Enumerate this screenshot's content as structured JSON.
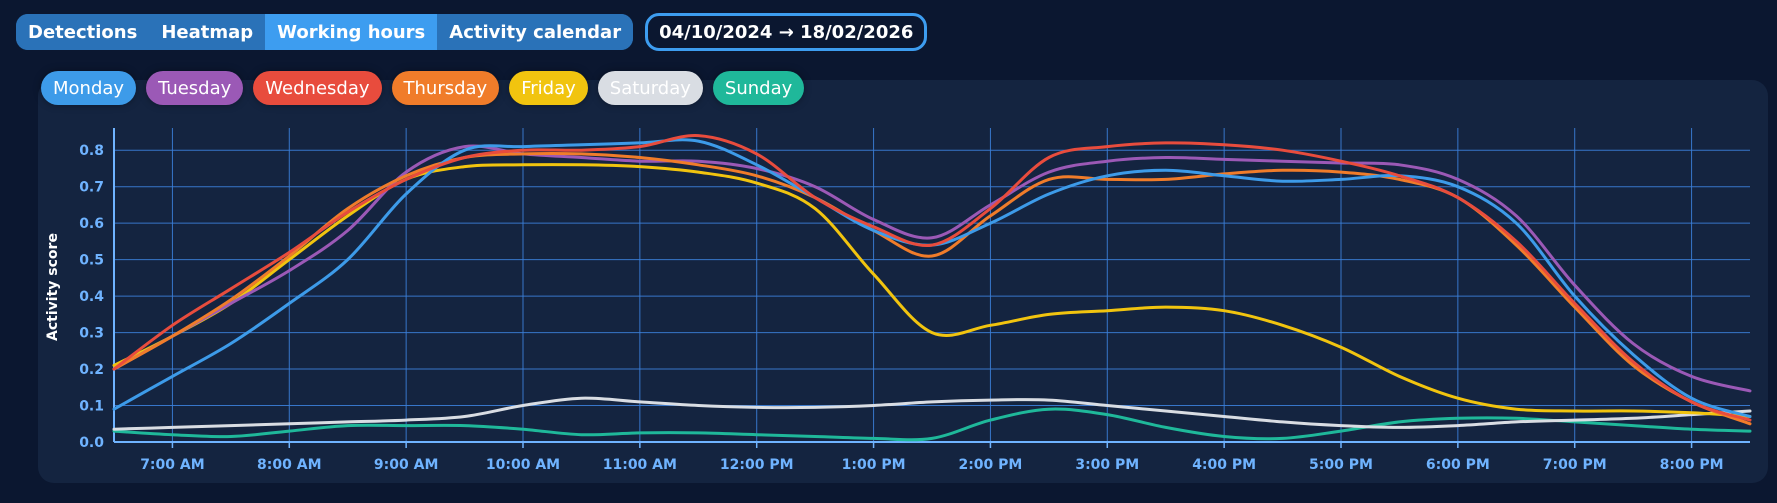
{
  "tabs": [
    {
      "label": "Detections",
      "active": false
    },
    {
      "label": "Heatmap",
      "active": false
    },
    {
      "label": "Working hours",
      "active": true
    },
    {
      "label": "Activity calendar",
      "active": false
    }
  ],
  "date_range": "04/10/2024 → 18/02/2026",
  "chart_data": {
    "type": "line",
    "ylabel": "Activity score",
    "xlabel": "",
    "ylim": [
      0,
      0.85
    ],
    "xlim": [
      6.5,
      20.5
    ],
    "yticks": [
      0.0,
      0.1,
      0.2,
      0.3,
      0.4,
      0.5,
      0.6,
      0.7,
      0.8
    ],
    "yticklabels": [
      "0.0",
      "0.1",
      "0.2",
      "0.3",
      "0.4",
      "0.5",
      "0.6",
      "0.7",
      "0.8"
    ],
    "xticks": [
      7,
      8,
      9,
      10,
      11,
      12,
      13,
      14,
      15,
      16,
      17,
      18,
      19,
      20
    ],
    "xticklabels": [
      "7:00 AM",
      "8:00 AM",
      "9:00 AM",
      "10:00 AM",
      "11:00 AM",
      "12:00 PM",
      "1:00 PM",
      "2:00 PM",
      "3:00 PM",
      "4:00 PM",
      "5:00 PM",
      "6:00 PM",
      "7:00 PM",
      "8:00 PM"
    ],
    "grid": true,
    "legend_position": "top-left",
    "x": [
      6.5,
      7,
      7.5,
      8,
      8.5,
      9,
      9.5,
      10,
      10.5,
      11,
      11.5,
      12,
      12.5,
      13,
      13.5,
      14,
      14.5,
      15,
      15.5,
      16,
      16.5,
      17,
      17.5,
      18,
      18.5,
      19,
      19.5,
      20,
      20.5
    ],
    "series": [
      {
        "name": "Monday",
        "color": "#3d9be9",
        "values": [
          0.09,
          0.18,
          0.27,
          0.38,
          0.5,
          0.68,
          0.8,
          0.81,
          0.815,
          0.82,
          0.825,
          0.76,
          0.67,
          0.58,
          0.54,
          0.6,
          0.68,
          0.73,
          0.745,
          0.73,
          0.715,
          0.72,
          0.73,
          0.7,
          0.6,
          0.4,
          0.24,
          0.12,
          0.07
        ]
      },
      {
        "name": "Tuesday",
        "color": "#9b59b6",
        "values": [
          0.2,
          0.29,
          0.38,
          0.47,
          0.58,
          0.74,
          0.81,
          0.79,
          0.78,
          0.77,
          0.77,
          0.75,
          0.7,
          0.61,
          0.56,
          0.65,
          0.74,
          0.77,
          0.78,
          0.775,
          0.77,
          0.765,
          0.76,
          0.72,
          0.62,
          0.43,
          0.27,
          0.18,
          0.14
        ]
      },
      {
        "name": "Wednesday",
        "color": "#e84c3d",
        "values": [
          0.2,
          0.32,
          0.42,
          0.52,
          0.63,
          0.72,
          0.78,
          0.8,
          0.8,
          0.81,
          0.84,
          0.79,
          0.67,
          0.59,
          0.54,
          0.64,
          0.78,
          0.81,
          0.82,
          0.815,
          0.8,
          0.77,
          0.73,
          0.67,
          0.55,
          0.38,
          0.22,
          0.11,
          0.06
        ]
      },
      {
        "name": "Thursday",
        "color": "#f07c2a",
        "values": [
          0.2,
          0.29,
          0.39,
          0.51,
          0.64,
          0.73,
          0.78,
          0.79,
          0.79,
          0.78,
          0.76,
          0.73,
          0.67,
          0.58,
          0.51,
          0.62,
          0.72,
          0.72,
          0.72,
          0.735,
          0.745,
          0.74,
          0.72,
          0.67,
          0.54,
          0.37,
          0.21,
          0.11,
          0.05
        ]
      },
      {
        "name": "Friday",
        "color": "#f1c40f",
        "values": [
          0.21,
          0.29,
          0.38,
          0.5,
          0.62,
          0.72,
          0.755,
          0.76,
          0.76,
          0.755,
          0.74,
          0.71,
          0.64,
          0.46,
          0.3,
          0.32,
          0.35,
          0.36,
          0.37,
          0.36,
          0.32,
          0.26,
          0.18,
          0.12,
          0.09,
          0.085,
          0.085,
          0.08,
          0.07
        ]
      },
      {
        "name": "Saturday",
        "color": "#d9dde3",
        "values": [
          0.035,
          0.04,
          0.045,
          0.05,
          0.055,
          0.06,
          0.07,
          0.1,
          0.12,
          0.11,
          0.1,
          0.095,
          0.095,
          0.1,
          0.11,
          0.115,
          0.115,
          0.1,
          0.085,
          0.07,
          0.055,
          0.045,
          0.04,
          0.045,
          0.055,
          0.06,
          0.065,
          0.075,
          0.085
        ]
      },
      {
        "name": "Sunday",
        "color": "#1fb89a",
        "values": [
          0.03,
          0.02,
          0.015,
          0.03,
          0.045,
          0.045,
          0.045,
          0.035,
          0.02,
          0.025,
          0.025,
          0.02,
          0.015,
          0.01,
          0.01,
          0.06,
          0.09,
          0.075,
          0.04,
          0.015,
          0.01,
          0.03,
          0.055,
          0.065,
          0.065,
          0.055,
          0.045,
          0.035,
          0.03
        ]
      }
    ]
  }
}
